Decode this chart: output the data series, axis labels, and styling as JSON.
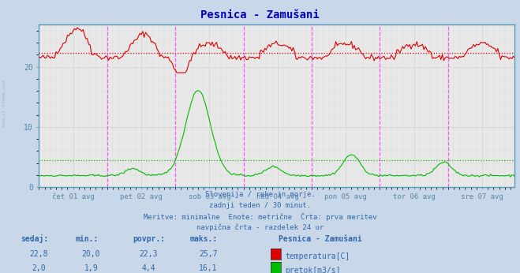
{
  "title": "Pesnica - Zamušani",
  "title_color": "#0000cc",
  "bg_color": "#c8d8e8",
  "plot_bg_color": "#e8e8e8",
  "grid_color": "#cccccc",
  "axis_color": "#5588aa",
  "text_color": "#3366aa",
  "watermark": "www.si-vreme.com",
  "xlabel_ticks": [
    "čet 01 avg",
    "pet 02 avg",
    "sob 03 avg",
    "ned 04 avg",
    "pon 05 avg",
    "tor 06 avg",
    "sre 07 avg"
  ],
  "ylim": [
    0,
    27
  ],
  "xlim": [
    0,
    336
  ],
  "n_points": 336,
  "temp_color": "#dd0000",
  "flow_color": "#00bb00",
  "dotted_temp_avg": 22.3,
  "dotted_flow_avg": 4.4,
  "vline_color": "#ff44ff",
  "subtitle1": "Slovenija / reke in morje.",
  "subtitle2": "zadnji teden / 30 minut.",
  "subtitle3": "Meritve: minimalne  Enote: metrične  Črta: prva meritev",
  "subtitle4": "navpična črta - razdelek 24 ur",
  "legend_title": "Pesnica - Zamušani",
  "legend_items": [
    "temperatura[C]",
    "pretok[m3/s]"
  ],
  "legend_colors": [
    "#dd0000",
    "#00bb00"
  ],
  "table_headers": [
    "sedaj:",
    "min.:",
    "povpr.:",
    "maks.:"
  ],
  "table_temp": [
    "22,8",
    "20,0",
    "22,3",
    "25,7"
  ],
  "table_flow": [
    "2,0",
    "1,9",
    "4,4",
    "16,1"
  ]
}
